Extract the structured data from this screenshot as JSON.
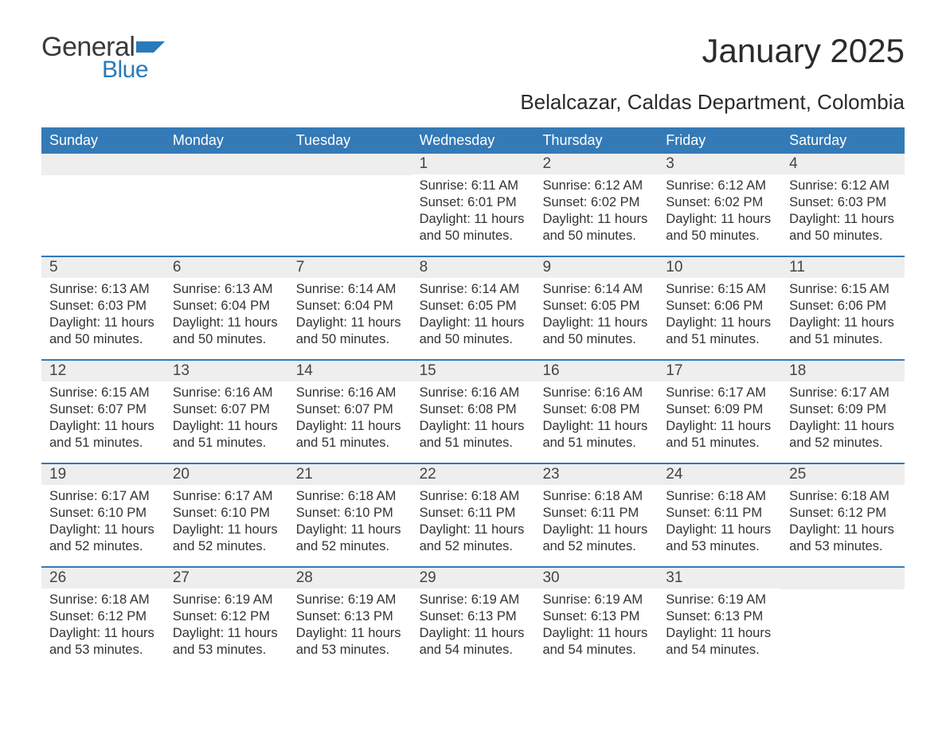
{
  "logo": {
    "text1": "General",
    "text2": "Blue",
    "flag_color": "#2a7ab9"
  },
  "title": "January 2025",
  "subtitle": "Belalcazar, Caldas Department, Colombia",
  "colors": {
    "header_bg": "#337ab7",
    "header_text": "#ffffff",
    "daynum_bg": "#eeeeee",
    "week_border": "#337ab7",
    "body_text": "#333333",
    "title_text": "#2b2b2b",
    "page_bg": "#ffffff"
  },
  "typography": {
    "title_fontsize": 42,
    "subtitle_fontsize": 26,
    "dow_fontsize": 18,
    "daynum_fontsize": 19,
    "body_fontsize": 16.5
  },
  "days_of_week": [
    "Sunday",
    "Monday",
    "Tuesday",
    "Wednesday",
    "Thursday",
    "Friday",
    "Saturday"
  ],
  "weeks": [
    [
      null,
      null,
      null,
      {
        "n": "1",
        "sr": "Sunrise: 6:11 AM",
        "ss": "Sunset: 6:01 PM",
        "d1": "Daylight: 11 hours",
        "d2": "and 50 minutes."
      },
      {
        "n": "2",
        "sr": "Sunrise: 6:12 AM",
        "ss": "Sunset: 6:02 PM",
        "d1": "Daylight: 11 hours",
        "d2": "and 50 minutes."
      },
      {
        "n": "3",
        "sr": "Sunrise: 6:12 AM",
        "ss": "Sunset: 6:02 PM",
        "d1": "Daylight: 11 hours",
        "d2": "and 50 minutes."
      },
      {
        "n": "4",
        "sr": "Sunrise: 6:12 AM",
        "ss": "Sunset: 6:03 PM",
        "d1": "Daylight: 11 hours",
        "d2": "and 50 minutes."
      }
    ],
    [
      {
        "n": "5",
        "sr": "Sunrise: 6:13 AM",
        "ss": "Sunset: 6:03 PM",
        "d1": "Daylight: 11 hours",
        "d2": "and 50 minutes."
      },
      {
        "n": "6",
        "sr": "Sunrise: 6:13 AM",
        "ss": "Sunset: 6:04 PM",
        "d1": "Daylight: 11 hours",
        "d2": "and 50 minutes."
      },
      {
        "n": "7",
        "sr": "Sunrise: 6:14 AM",
        "ss": "Sunset: 6:04 PM",
        "d1": "Daylight: 11 hours",
        "d2": "and 50 minutes."
      },
      {
        "n": "8",
        "sr": "Sunrise: 6:14 AM",
        "ss": "Sunset: 6:05 PM",
        "d1": "Daylight: 11 hours",
        "d2": "and 50 minutes."
      },
      {
        "n": "9",
        "sr": "Sunrise: 6:14 AM",
        "ss": "Sunset: 6:05 PM",
        "d1": "Daylight: 11 hours",
        "d2": "and 50 minutes."
      },
      {
        "n": "10",
        "sr": "Sunrise: 6:15 AM",
        "ss": "Sunset: 6:06 PM",
        "d1": "Daylight: 11 hours",
        "d2": "and 51 minutes."
      },
      {
        "n": "11",
        "sr": "Sunrise: 6:15 AM",
        "ss": "Sunset: 6:06 PM",
        "d1": "Daylight: 11 hours",
        "d2": "and 51 minutes."
      }
    ],
    [
      {
        "n": "12",
        "sr": "Sunrise: 6:15 AM",
        "ss": "Sunset: 6:07 PM",
        "d1": "Daylight: 11 hours",
        "d2": "and 51 minutes."
      },
      {
        "n": "13",
        "sr": "Sunrise: 6:16 AM",
        "ss": "Sunset: 6:07 PM",
        "d1": "Daylight: 11 hours",
        "d2": "and 51 minutes."
      },
      {
        "n": "14",
        "sr": "Sunrise: 6:16 AM",
        "ss": "Sunset: 6:07 PM",
        "d1": "Daylight: 11 hours",
        "d2": "and 51 minutes."
      },
      {
        "n": "15",
        "sr": "Sunrise: 6:16 AM",
        "ss": "Sunset: 6:08 PM",
        "d1": "Daylight: 11 hours",
        "d2": "and 51 minutes."
      },
      {
        "n": "16",
        "sr": "Sunrise: 6:16 AM",
        "ss": "Sunset: 6:08 PM",
        "d1": "Daylight: 11 hours",
        "d2": "and 51 minutes."
      },
      {
        "n": "17",
        "sr": "Sunrise: 6:17 AM",
        "ss": "Sunset: 6:09 PM",
        "d1": "Daylight: 11 hours",
        "d2": "and 51 minutes."
      },
      {
        "n": "18",
        "sr": "Sunrise: 6:17 AM",
        "ss": "Sunset: 6:09 PM",
        "d1": "Daylight: 11 hours",
        "d2": "and 52 minutes."
      }
    ],
    [
      {
        "n": "19",
        "sr": "Sunrise: 6:17 AM",
        "ss": "Sunset: 6:10 PM",
        "d1": "Daylight: 11 hours",
        "d2": "and 52 minutes."
      },
      {
        "n": "20",
        "sr": "Sunrise: 6:17 AM",
        "ss": "Sunset: 6:10 PM",
        "d1": "Daylight: 11 hours",
        "d2": "and 52 minutes."
      },
      {
        "n": "21",
        "sr": "Sunrise: 6:18 AM",
        "ss": "Sunset: 6:10 PM",
        "d1": "Daylight: 11 hours",
        "d2": "and 52 minutes."
      },
      {
        "n": "22",
        "sr": "Sunrise: 6:18 AM",
        "ss": "Sunset: 6:11 PM",
        "d1": "Daylight: 11 hours",
        "d2": "and 52 minutes."
      },
      {
        "n": "23",
        "sr": "Sunrise: 6:18 AM",
        "ss": "Sunset: 6:11 PM",
        "d1": "Daylight: 11 hours",
        "d2": "and 52 minutes."
      },
      {
        "n": "24",
        "sr": "Sunrise: 6:18 AM",
        "ss": "Sunset: 6:11 PM",
        "d1": "Daylight: 11 hours",
        "d2": "and 53 minutes."
      },
      {
        "n": "25",
        "sr": "Sunrise: 6:18 AM",
        "ss": "Sunset: 6:12 PM",
        "d1": "Daylight: 11 hours",
        "d2": "and 53 minutes."
      }
    ],
    [
      {
        "n": "26",
        "sr": "Sunrise: 6:18 AM",
        "ss": "Sunset: 6:12 PM",
        "d1": "Daylight: 11 hours",
        "d2": "and 53 minutes."
      },
      {
        "n": "27",
        "sr": "Sunrise: 6:19 AM",
        "ss": "Sunset: 6:12 PM",
        "d1": "Daylight: 11 hours",
        "d2": "and 53 minutes."
      },
      {
        "n": "28",
        "sr": "Sunrise: 6:19 AM",
        "ss": "Sunset: 6:13 PM",
        "d1": "Daylight: 11 hours",
        "d2": "and 53 minutes."
      },
      {
        "n": "29",
        "sr": "Sunrise: 6:19 AM",
        "ss": "Sunset: 6:13 PM",
        "d1": "Daylight: 11 hours",
        "d2": "and 54 minutes."
      },
      {
        "n": "30",
        "sr": "Sunrise: 6:19 AM",
        "ss": "Sunset: 6:13 PM",
        "d1": "Daylight: 11 hours",
        "d2": "and 54 minutes."
      },
      {
        "n": "31",
        "sr": "Sunrise: 6:19 AM",
        "ss": "Sunset: 6:13 PM",
        "d1": "Daylight: 11 hours",
        "d2": "and 54 minutes."
      },
      null
    ]
  ]
}
